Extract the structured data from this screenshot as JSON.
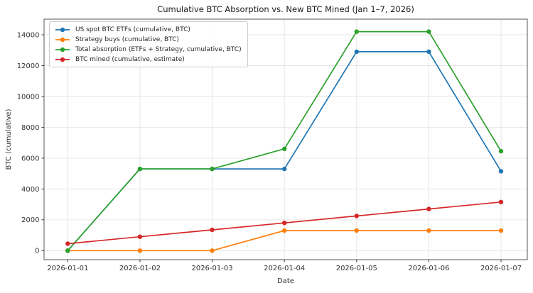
{
  "window": {
    "kind": "matplotlib-figure",
    "background": "#ffffff"
  },
  "chart_data": {
    "type": "line",
    "title": "Cumulative BTC Absorption vs. New BTC Mined (Jan 1–7, 2026)",
    "xlabel": "Date",
    "ylabel": "BTC (cumulative)",
    "x": [
      "2026-01-01",
      "2026-01-02",
      "2026-01-03",
      "2026-01-04",
      "2026-01-05",
      "2026-01-06",
      "2026-01-07"
    ],
    "yticks": [
      0,
      2000,
      4000,
      6000,
      8000,
      10000,
      12000,
      14000
    ],
    "ylim": [
      -600,
      15000
    ],
    "grid": true,
    "legend_position": "upper left",
    "series": [
      {
        "name": "US spot BTC ETFs (cumulative, BTC)",
        "color": "#1f77b4",
        "marker": "circle",
        "values": [
          0,
          5300,
          5300,
          5300,
          12900,
          12900,
          5150
        ]
      },
      {
        "name": "Strategy buys (cumulative, BTC)",
        "color": "#ff7f0e",
        "marker": "circle",
        "values": [
          0,
          0,
          0,
          1300,
          1300,
          1300,
          1300
        ]
      },
      {
        "name": "Total absorption (ETFs + Strategy, cumulative, BTC)",
        "color": "#2ca02c",
        "marker": "circle",
        "values": [
          0,
          5300,
          5300,
          6600,
          14200,
          14200,
          6450
        ]
      },
      {
        "name": "BTC mined (cumulative, estimate)",
        "color": "#d62728",
        "marker": "circle",
        "values": [
          450,
          900,
          1350,
          1800,
          2250,
          2700,
          3150
        ]
      }
    ]
  },
  "colors": {
    "grid": "#e6e6e6",
    "spine": "#555555",
    "tick": "#333333",
    "tick_label": "#333333",
    "title_text": "#1a1a1a"
  }
}
